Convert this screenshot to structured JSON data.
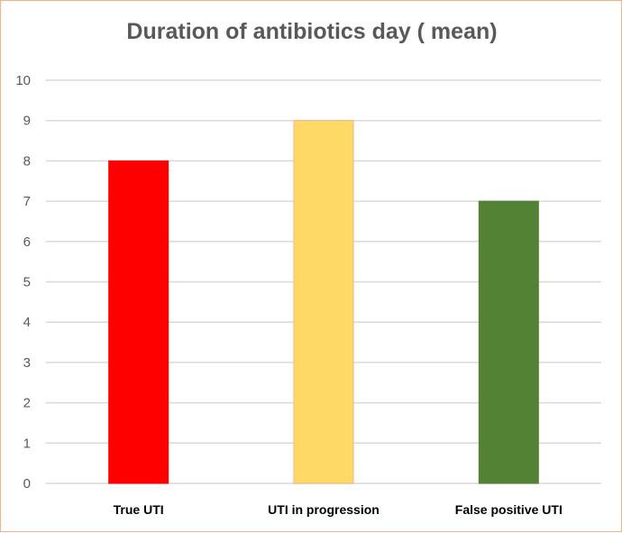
{
  "chart_data": {
    "type": "bar",
    "title": "Duration of antibiotics day ( mean)",
    "xlabel": "",
    "ylabel": "",
    "categories": [
      "True UTI",
      "UTI in progression",
      "False positive UTI"
    ],
    "values": [
      8,
      9,
      7
    ],
    "colors": [
      "#ff0000",
      "#ffd966",
      "#548235"
    ],
    "bar_outline_colors": [
      "#ff0000",
      "#f4b183",
      "#548235"
    ],
    "ylim": [
      0,
      10
    ],
    "yticks": [
      "0",
      "1",
      "2",
      "3",
      "4",
      "5",
      "6",
      "7",
      "8",
      "9",
      "10"
    ],
    "grid": true,
    "legend": "none"
  }
}
